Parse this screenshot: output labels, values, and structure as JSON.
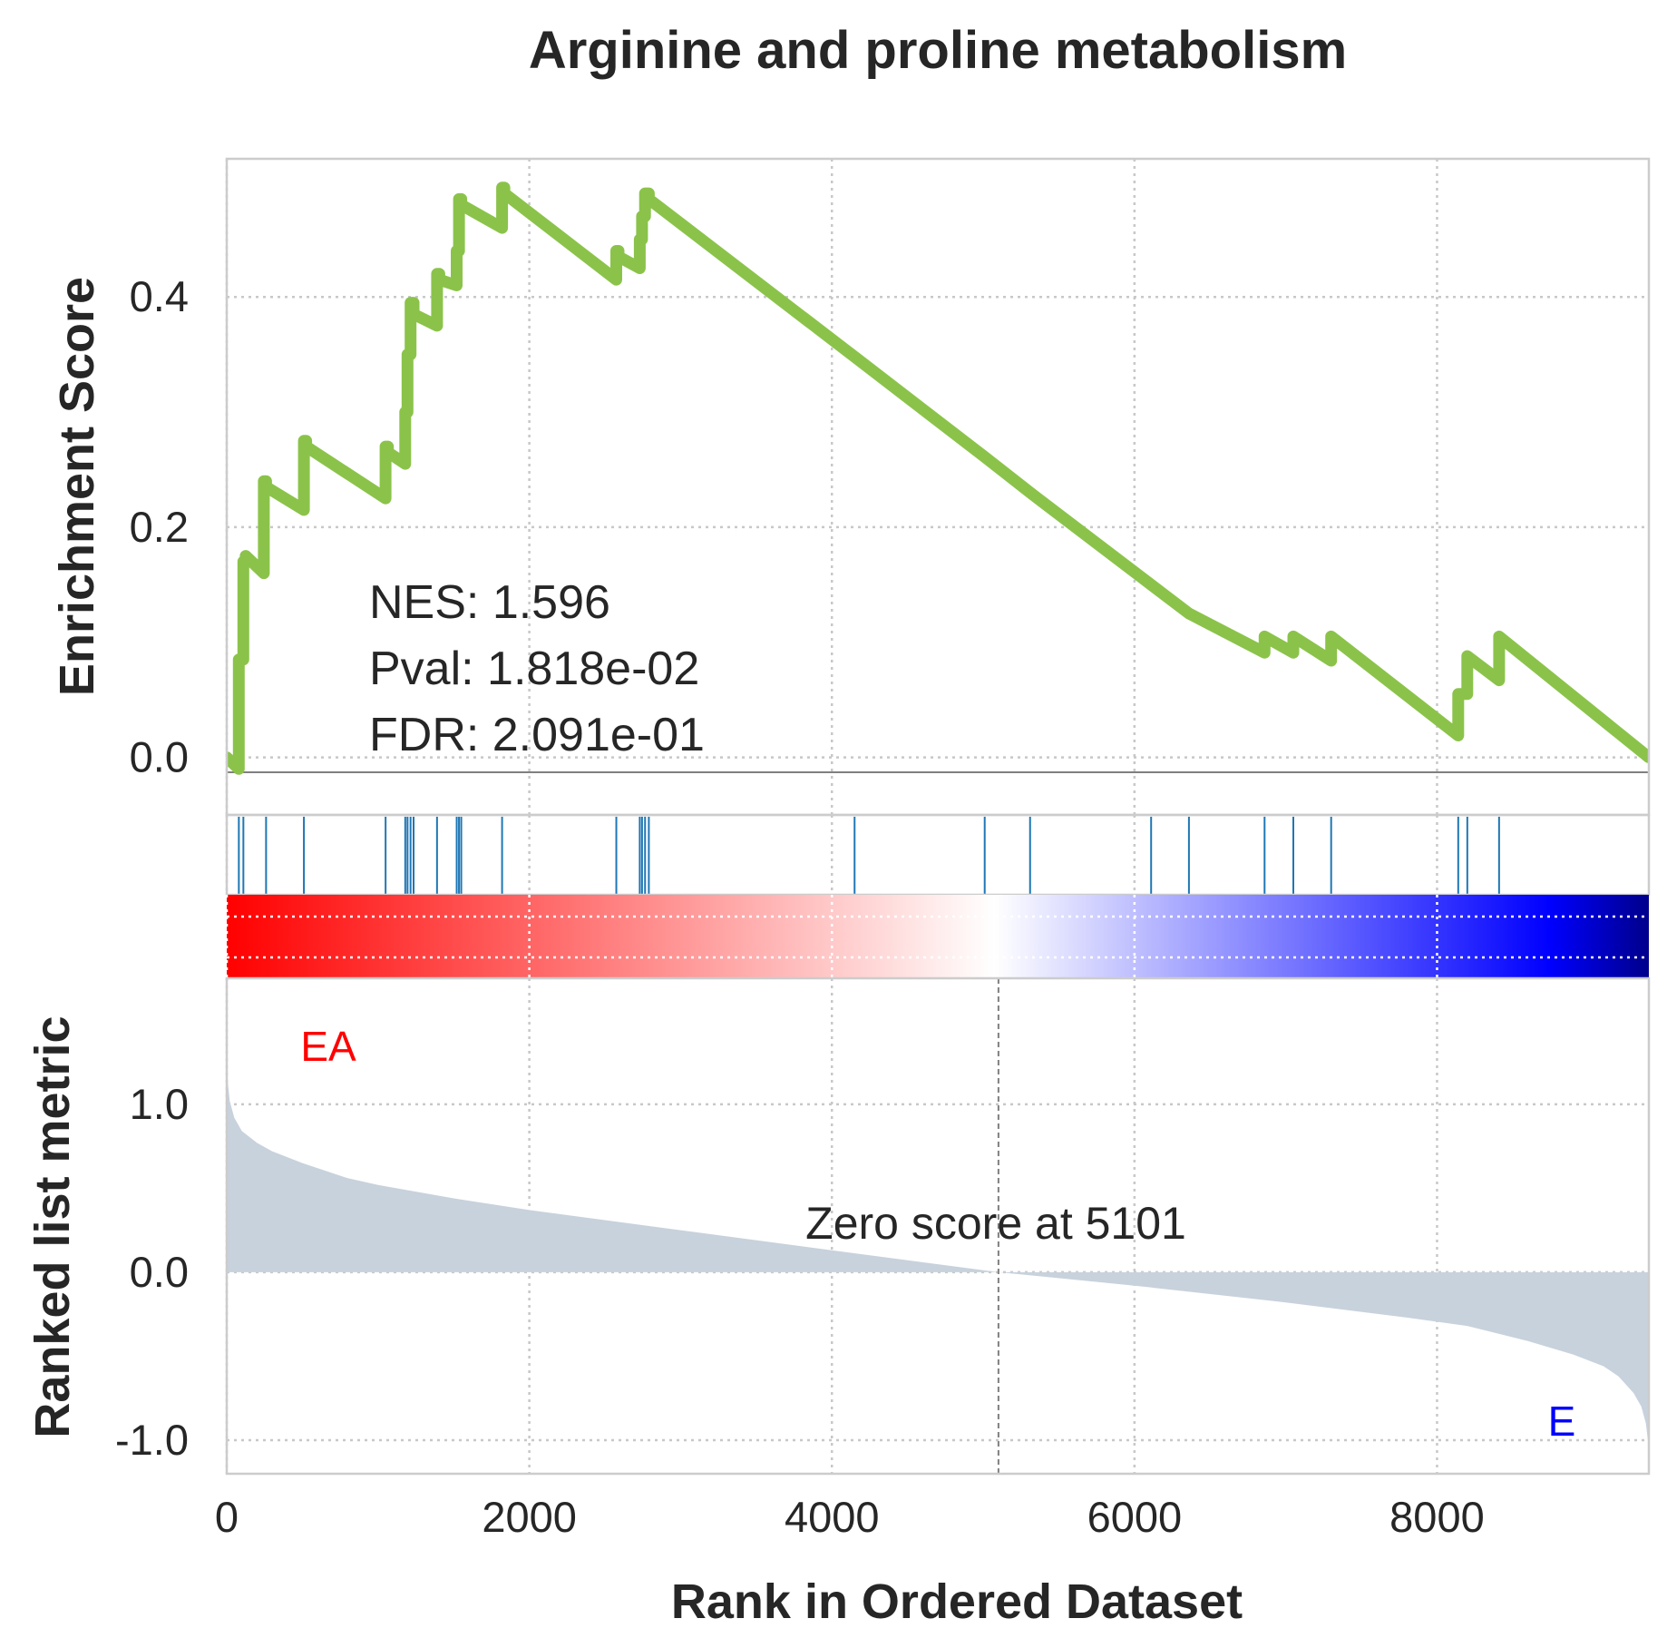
{
  "chart_data": {
    "type": "line",
    "title": "Arginine and proline metabolism",
    "xlabel": "Rank in Ordered Dataset",
    "xlim": [
      0,
      9400
    ],
    "x_ticks": [
      "0",
      "2000",
      "4000",
      "6000",
      "8000"
    ],
    "x_tick_values": [
      0,
      2000,
      4000,
      6000,
      8000
    ],
    "grid": true,
    "enrichment": {
      "ylabel": "Enrichment Score",
      "ylim": [
        -0.05,
        0.52
      ],
      "y_ticks": [
        "0.0",
        "0.2",
        "0.4"
      ],
      "y_tick_values": [
        0,
        0.2,
        0.4
      ],
      "line_color": "#8bc34a",
      "series": {
        "x": [
          0,
          80,
          80,
          110,
          110,
          125,
          125,
          245,
          245,
          260,
          260,
          510,
          510,
          525,
          525,
          1050,
          1050,
          1065,
          1065,
          1180,
          1180,
          1195,
          1195,
          1215,
          1215,
          1235,
          1235,
          1390,
          1390,
          1405,
          1405,
          1520,
          1520,
          1535,
          1535,
          1550,
          1550,
          1820,
          1820,
          1835,
          1835,
          2575,
          2575,
          2590,
          2590,
          2730,
          2730,
          2745,
          2745,
          2765,
          2765,
          2790,
          2790,
          4150,
          4150,
          5010,
          5010,
          5310,
          5310,
          6110,
          6110,
          6360,
          6360,
          6860,
          6860,
          7050,
          7050,
          7300,
          7300,
          8140,
          8140,
          8200,
          8200,
          8410,
          8410,
          9400
        ],
        "y": [
          0.0,
          -0.01,
          0.085,
          0.085,
          0.17,
          0.17,
          0.175,
          0.16,
          0.24,
          0.24,
          0.235,
          0.215,
          0.275,
          0.275,
          0.27,
          0.225,
          0.27,
          0.27,
          0.265,
          0.255,
          0.3,
          0.3,
          0.35,
          0.35,
          0.395,
          0.395,
          0.385,
          0.375,
          0.42,
          0.42,
          0.415,
          0.41,
          0.44,
          0.44,
          0.485,
          0.485,
          0.48,
          0.46,
          0.495,
          0.495,
          0.49,
          0.415,
          0.44,
          0.44,
          0.435,
          0.425,
          0.45,
          0.45,
          0.47,
          0.47,
          0.49,
          0.49,
          0.485,
          0.348,
          0.348,
          0.261,
          0.261,
          0.23,
          0.23,
          0.15,
          0.15,
          0.125,
          0.125,
          0.091,
          0.105,
          0.091,
          0.105,
          0.084,
          0.105,
          0.019,
          0.055,
          0.055,
          0.088,
          0.067,
          0.105,
          0.0
        ]
      },
      "annotations": [
        "NES: 1.596",
        "Pval: 1.818e-02",
        "FDR: 2.091e-01"
      ]
    },
    "hits": {
      "color": "#1f77b4",
      "positions": [
        80,
        110,
        260,
        510,
        1050,
        1180,
        1195,
        1215,
        1235,
        1390,
        1520,
        1535,
        1550,
        1820,
        2575,
        2730,
        2745,
        2765,
        2790,
        4150,
        5010,
        5310,
        6110,
        6360,
        6860,
        7050,
        7300,
        8140,
        8200,
        8410
      ]
    },
    "colorbar": {
      "colors": [
        "#ff0000",
        "#ffffff",
        "#0000ff",
        "#00008b"
      ]
    },
    "ranked_metric": {
      "ylabel": "Ranked list metric",
      "ylim": [
        -1.2,
        1.75
      ],
      "y_ticks": [
        "1.0",
        "0.0",
        "-1.0"
      ],
      "y_tick_values": [
        1.0,
        0.0,
        -1.0
      ],
      "fill_color": "#c8d2dc",
      "series": {
        "x": [
          0,
          5,
          20,
          50,
          100,
          200,
          300,
          500,
          800,
          1000,
          1500,
          2000,
          3000,
          4000,
          5101,
          6000,
          7000,
          7800,
          8200,
          8600,
          8900,
          9100,
          9200,
          9300,
          9350,
          9380,
          9400
        ],
        "y": [
          1.6,
          1.15,
          1.02,
          0.92,
          0.84,
          0.77,
          0.72,
          0.65,
          0.56,
          0.52,
          0.44,
          0.37,
          0.25,
          0.13,
          0.0,
          -0.08,
          -0.18,
          -0.27,
          -0.32,
          -0.41,
          -0.49,
          -0.56,
          -0.62,
          -0.72,
          -0.8,
          -0.9,
          -1.05
        ]
      },
      "zero_score_at": 5101,
      "zero_label": "Zero score at 5101",
      "pos_label": "EA",
      "pos_color": "#ff0000",
      "neg_label": "E",
      "neg_color": "#0000ff"
    }
  }
}
